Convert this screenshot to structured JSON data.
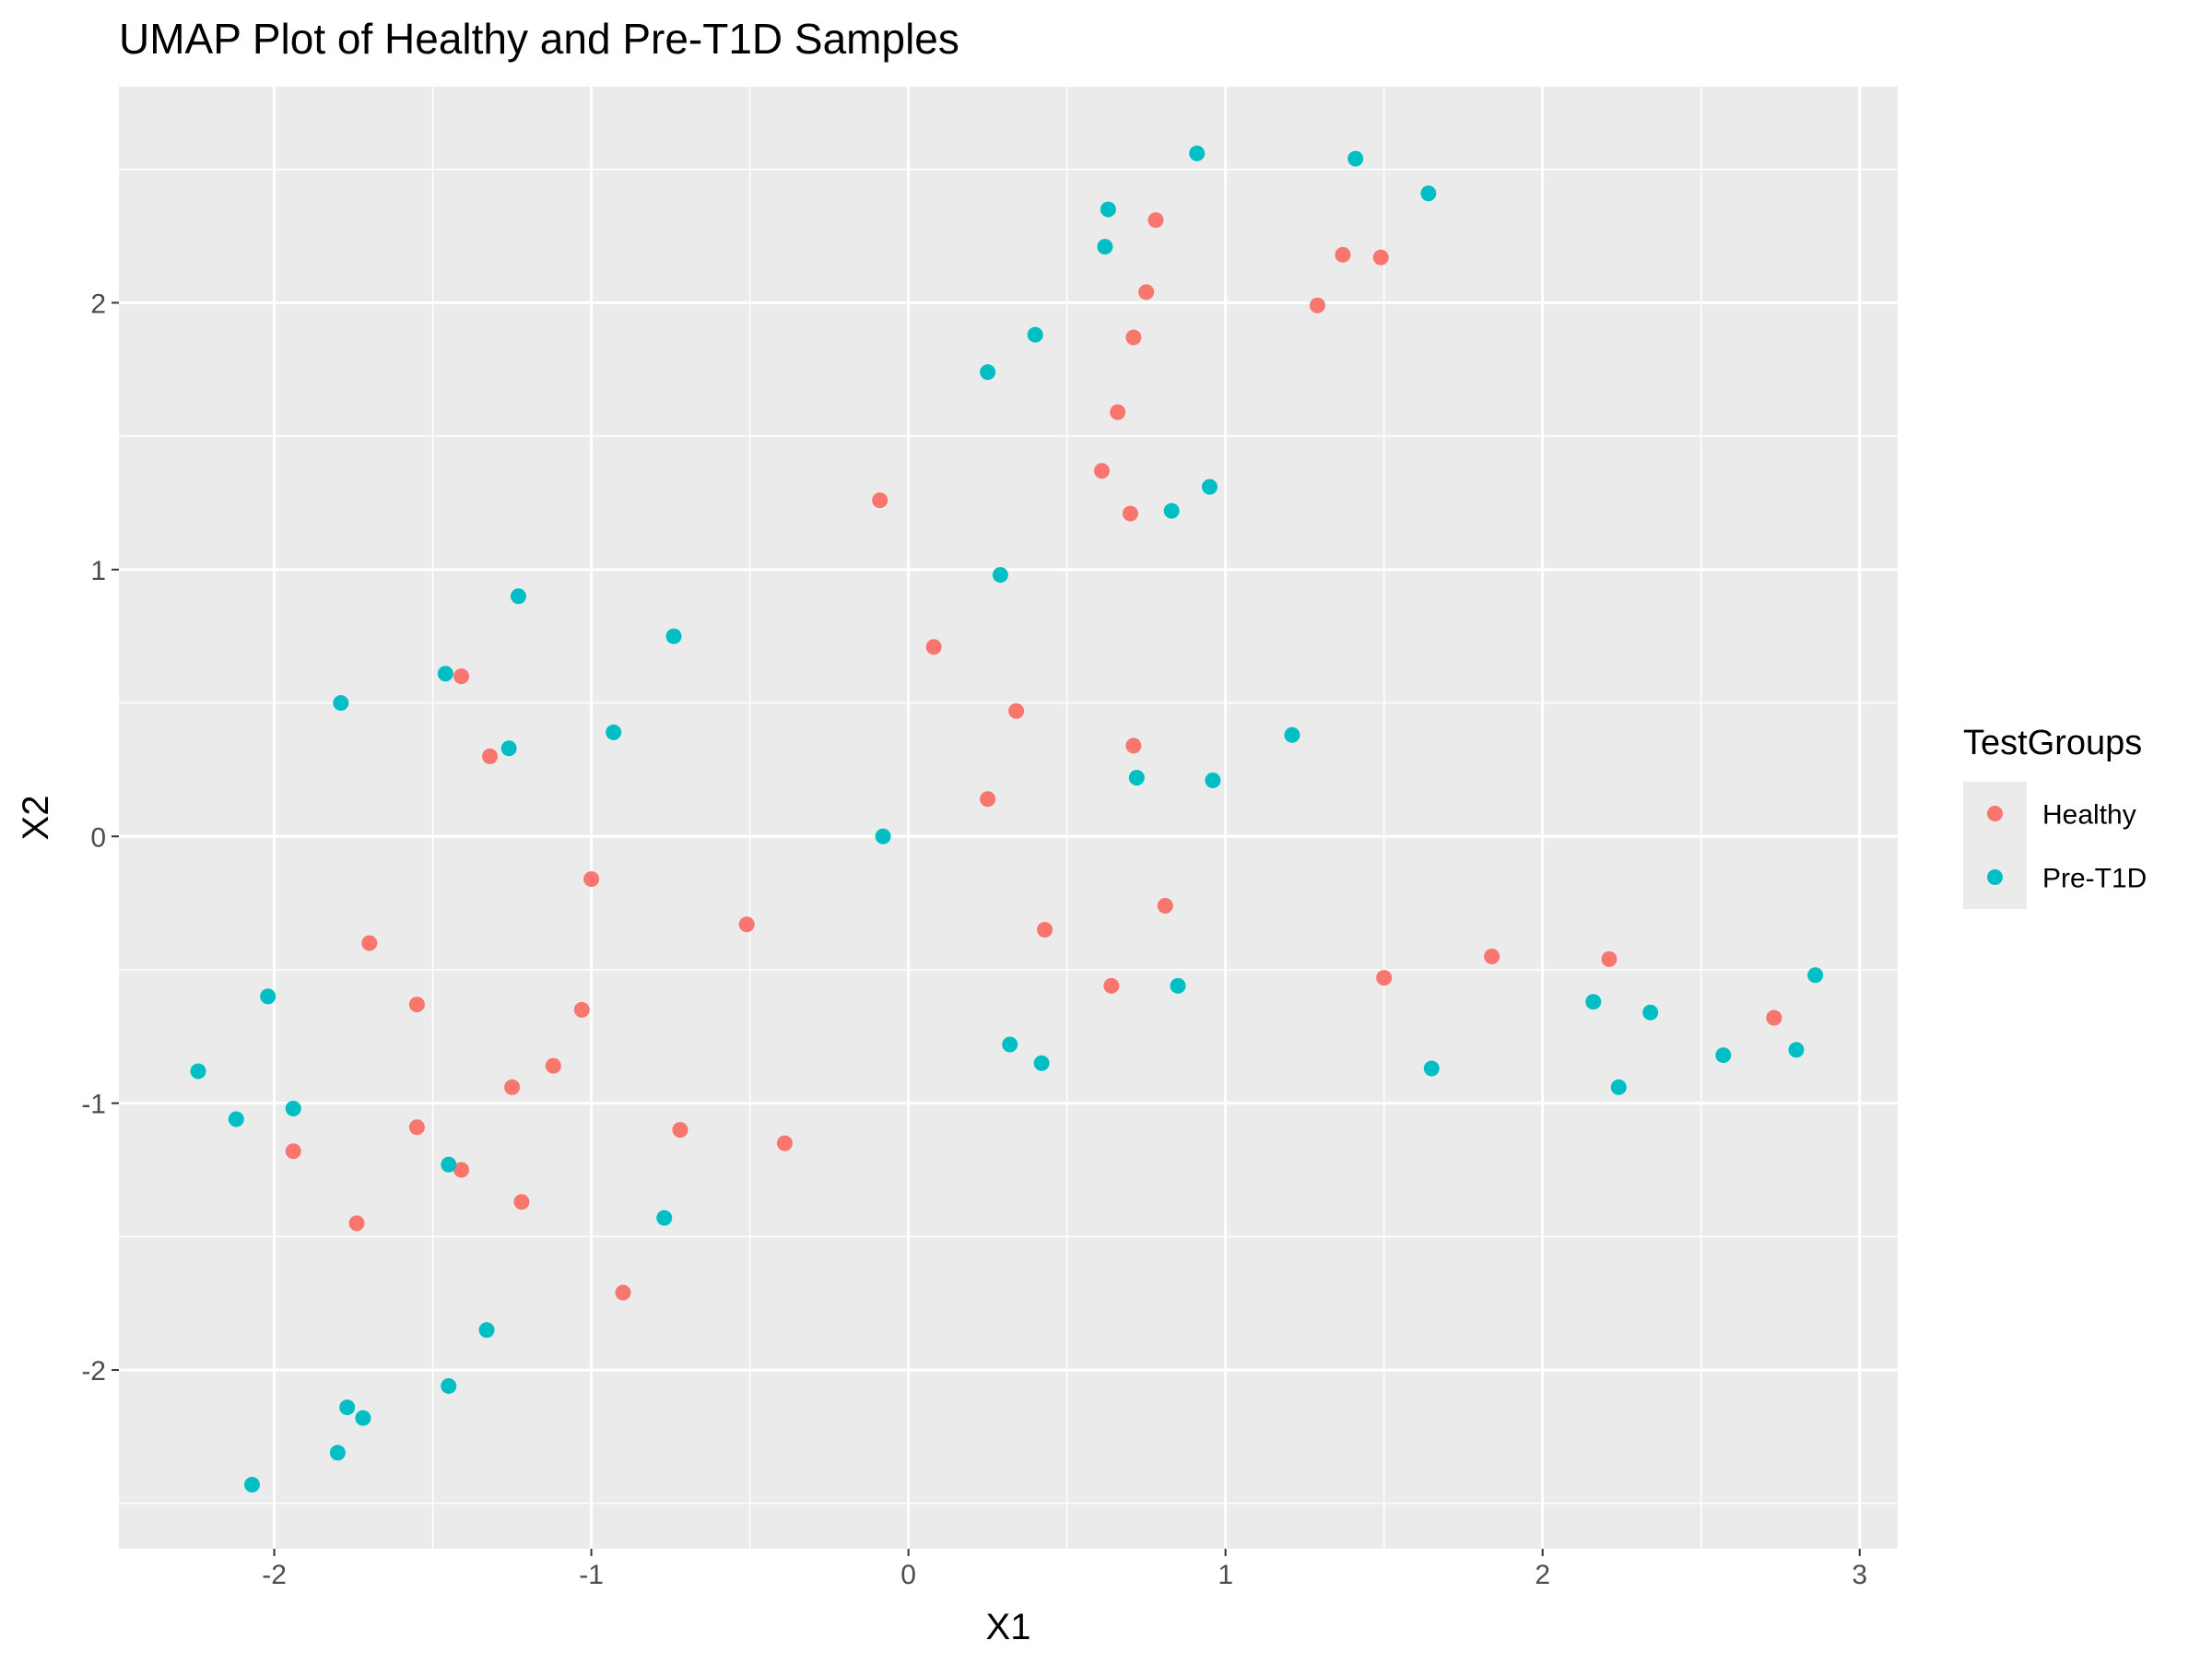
{
  "chart_data": {
    "type": "scatter",
    "title": "UMAP Plot of Healthy and Pre-T1D Samples",
    "xlabel": "X1",
    "ylabel": "X2",
    "xlim": [
      -2.49,
      3.12
    ],
    "ylim": [
      -2.67,
      2.81
    ],
    "xticks": [
      -2,
      -1,
      0,
      1,
      2,
      3
    ],
    "yticks": [
      -2,
      -1,
      0,
      1,
      2
    ],
    "grid": true,
    "legend": {
      "title": "TestGroups",
      "position": "right"
    },
    "series": [
      {
        "name": "Healthy",
        "color": "#F8766D",
        "points": [
          [
            0.78,
            2.31
          ],
          [
            1.37,
            2.18
          ],
          [
            1.49,
            2.17
          ],
          [
            0.75,
            2.04
          ],
          [
            1.29,
            1.99
          ],
          [
            0.71,
            1.87
          ],
          [
            0.66,
            1.59
          ],
          [
            0.61,
            1.37
          ],
          [
            0.7,
            1.21
          ],
          [
            -0.09,
            1.26
          ],
          [
            0.08,
            0.71
          ],
          [
            0.34,
            0.47
          ],
          [
            0.71,
            0.34
          ],
          [
            0.25,
            0.14
          ],
          [
            -1.41,
            0.6
          ],
          [
            -1.32,
            0.3
          ],
          [
            -1.0,
            -0.16
          ],
          [
            -0.51,
            -0.33
          ],
          [
            0.43,
            -0.35
          ],
          [
            0.81,
            -0.26
          ],
          [
            0.64,
            -0.56
          ],
          [
            1.5,
            -0.53
          ],
          [
            1.84,
            -0.45
          ],
          [
            2.21,
            -0.46
          ],
          [
            2.73,
            -0.68
          ],
          [
            -1.7,
            -0.4
          ],
          [
            -1.55,
            -0.63
          ],
          [
            -1.03,
            -0.65
          ],
          [
            -1.12,
            -0.86
          ],
          [
            -1.25,
            -0.94
          ],
          [
            -1.94,
            -1.18
          ],
          [
            -1.55,
            -1.09
          ],
          [
            -1.41,
            -1.25
          ],
          [
            -0.72,
            -1.1
          ],
          [
            -0.39,
            -1.15
          ],
          [
            -1.22,
            -1.37
          ],
          [
            -1.74,
            -1.45
          ],
          [
            -0.9,
            -1.71
          ]
        ]
      },
      {
        "name": "Pre-T1D",
        "color": "#00BFC4",
        "points": [
          [
            0.91,
            2.56
          ],
          [
            1.41,
            2.54
          ],
          [
            1.64,
            2.41
          ],
          [
            0.63,
            2.35
          ],
          [
            0.62,
            2.21
          ],
          [
            0.4,
            1.88
          ],
          [
            0.25,
            1.74
          ],
          [
            0.95,
            1.31
          ],
          [
            0.83,
            1.22
          ],
          [
            0.29,
            0.98
          ],
          [
            -1.23,
            0.9
          ],
          [
            -0.74,
            0.75
          ],
          [
            -1.46,
            0.61
          ],
          [
            -1.79,
            0.5
          ],
          [
            -0.93,
            0.39
          ],
          [
            -1.26,
            0.33
          ],
          [
            1.21,
            0.38
          ],
          [
            0.72,
            0.22
          ],
          [
            0.96,
            0.21
          ],
          [
            -0.08,
            0.0
          ],
          [
            0.85,
            -0.56
          ],
          [
            0.32,
            -0.78
          ],
          [
            0.42,
            -0.85
          ],
          [
            1.65,
            -0.87
          ],
          [
            2.16,
            -0.62
          ],
          [
            2.34,
            -0.66
          ],
          [
            2.24,
            -0.94
          ],
          [
            2.57,
            -0.82
          ],
          [
            2.8,
            -0.8
          ],
          [
            2.86,
            -0.52
          ],
          [
            -2.02,
            -0.6
          ],
          [
            -2.24,
            -0.88
          ],
          [
            -2.12,
            -1.06
          ],
          [
            -1.94,
            -1.02
          ],
          [
            -1.45,
            -1.23
          ],
          [
            -0.77,
            -1.43
          ],
          [
            -1.33,
            -1.85
          ],
          [
            -1.45,
            -2.06
          ],
          [
            -1.77,
            -2.14
          ],
          [
            -1.72,
            -2.18
          ],
          [
            -1.8,
            -2.31
          ],
          [
            -2.07,
            -2.43
          ]
        ]
      }
    ]
  }
}
